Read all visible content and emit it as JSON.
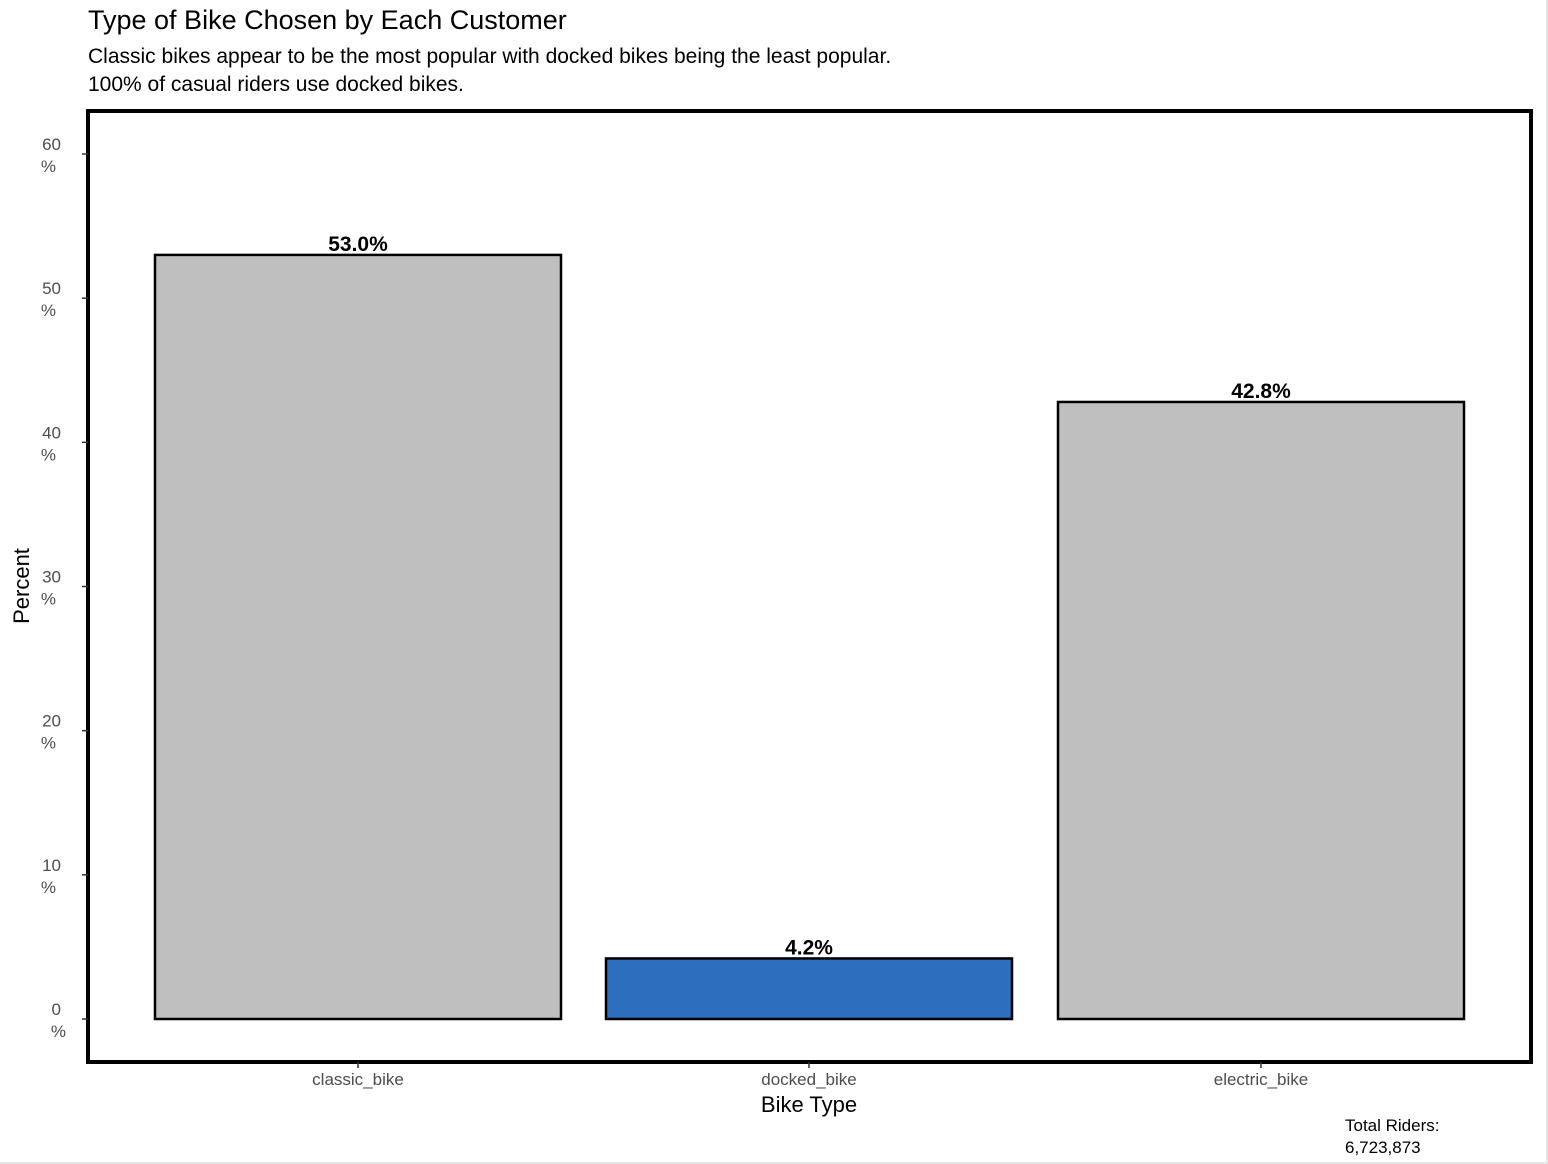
{
  "chart_data": {
    "type": "bar",
    "title": "Type of Bike Chosen by Each Customer",
    "subtitle": [
      "Classic bikes appear to be the most popular with docked bikes being the least popular.",
      "100% of casual riders use docked bikes."
    ],
    "categories": [
      "classic_bike",
      "docked_bike",
      "electric_bike"
    ],
    "values": [
      53.0,
      4.2,
      42.8
    ],
    "data_labels": [
      "53.0%",
      "4.2%",
      "42.8%"
    ],
    "bar_colors": [
      "#bfbfbf",
      "#2e6ebf",
      "#bfbfbf"
    ],
    "bar_outline_color": "#000000",
    "xlabel": "Bike Type",
    "ylabel": "Percent",
    "ylim": [
      -3,
      63
    ],
    "yticks": [
      0,
      10,
      20,
      30,
      40,
      50,
      60
    ],
    "ytick_labels": [
      [
        "0",
        "%"
      ],
      [
        "10",
        "%"
      ],
      [
        "20",
        "%"
      ],
      [
        "30",
        "%"
      ],
      [
        "40",
        "%"
      ],
      [
        "50",
        "%"
      ],
      [
        "60",
        "%"
      ]
    ],
    "grid": false,
    "legend": "none",
    "caption": [
      "Total Riders:",
      "6,723,873"
    ]
  }
}
